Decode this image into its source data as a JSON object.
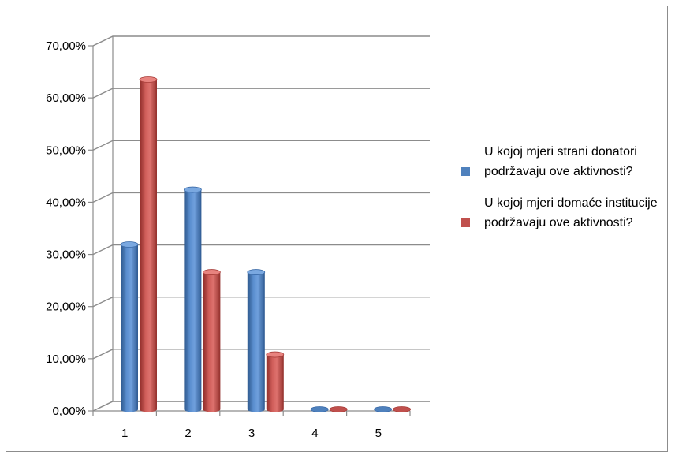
{
  "chart_data": {
    "type": "bar",
    "categories": [
      "1",
      "2",
      "3",
      "4",
      "5"
    ],
    "series": [
      {
        "name": "U kojoj mjeri strani donatori podržavaju ove aktivnosti?",
        "values": [
          31.6,
          42.1,
          26.3,
          0,
          0
        ],
        "color": "#4f81bd"
      },
      {
        "name": "U kojoj mjeri domaće institucije podržavaju ove aktivnosti?",
        "values": [
          63.2,
          26.3,
          10.5,
          0,
          0
        ],
        "color": "#c0504d"
      }
    ],
    "ylim": [
      0,
      70
    ],
    "yticks": [
      "0,00%",
      "10,00%",
      "20,00%",
      "30,00%",
      "40,00%",
      "50,00%",
      "60,00%",
      "70,00%"
    ],
    "grid": true,
    "legend_position": "right",
    "style": "3d-cylinder"
  }
}
